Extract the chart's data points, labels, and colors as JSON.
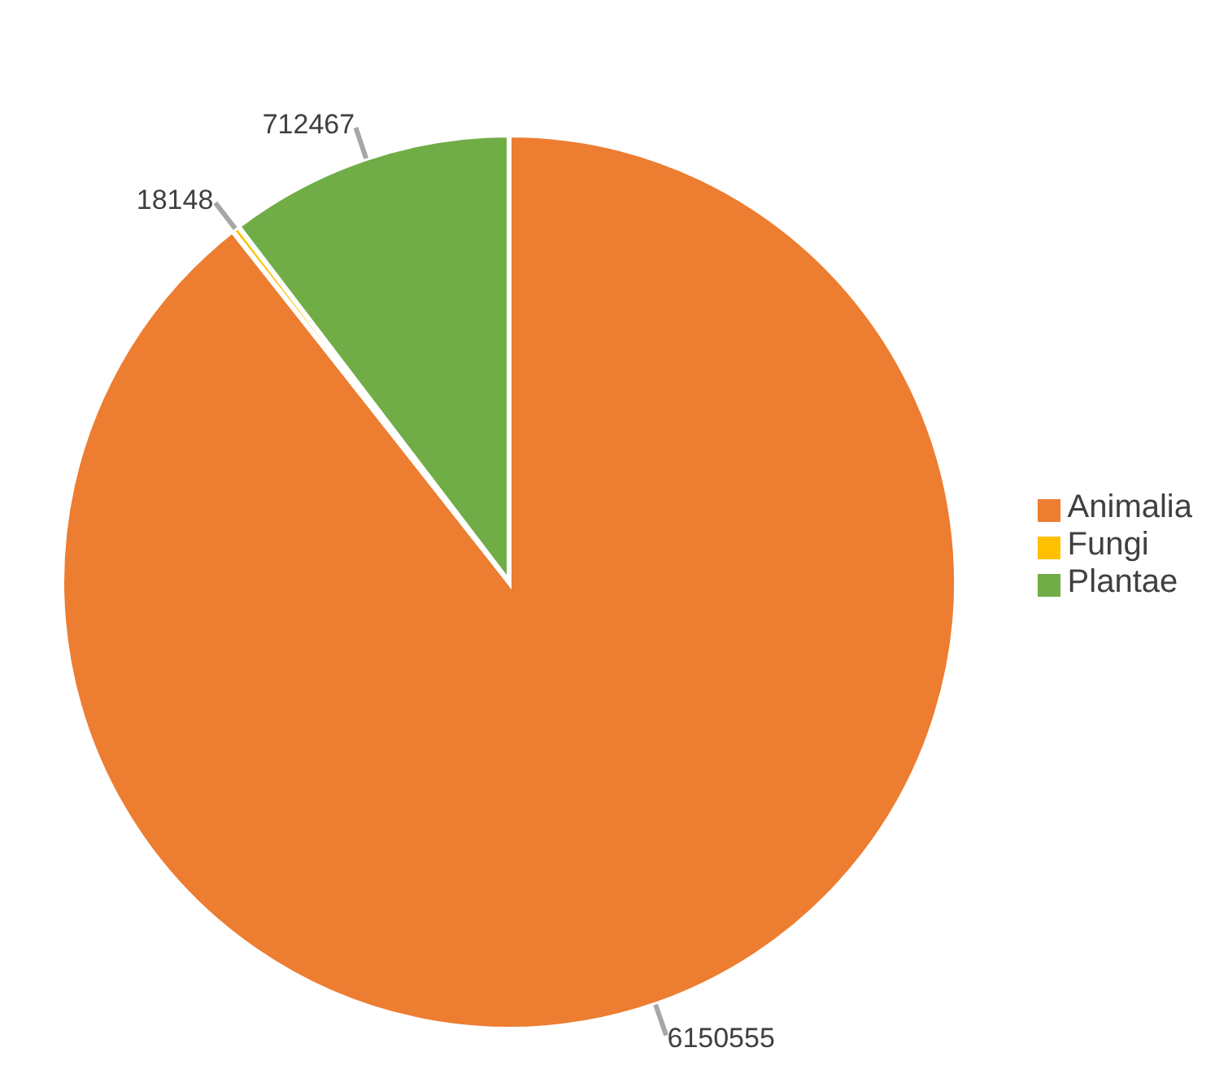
{
  "chart_data": {
    "type": "pie",
    "categories": [
      "Animalia",
      "Fungi",
      "Plantae"
    ],
    "values": [
      6150555,
      18148,
      712467
    ],
    "colors": [
      "#ed7d31",
      "#ffc000",
      "#70ad47"
    ],
    "data_labels": true,
    "legend": "right"
  }
}
